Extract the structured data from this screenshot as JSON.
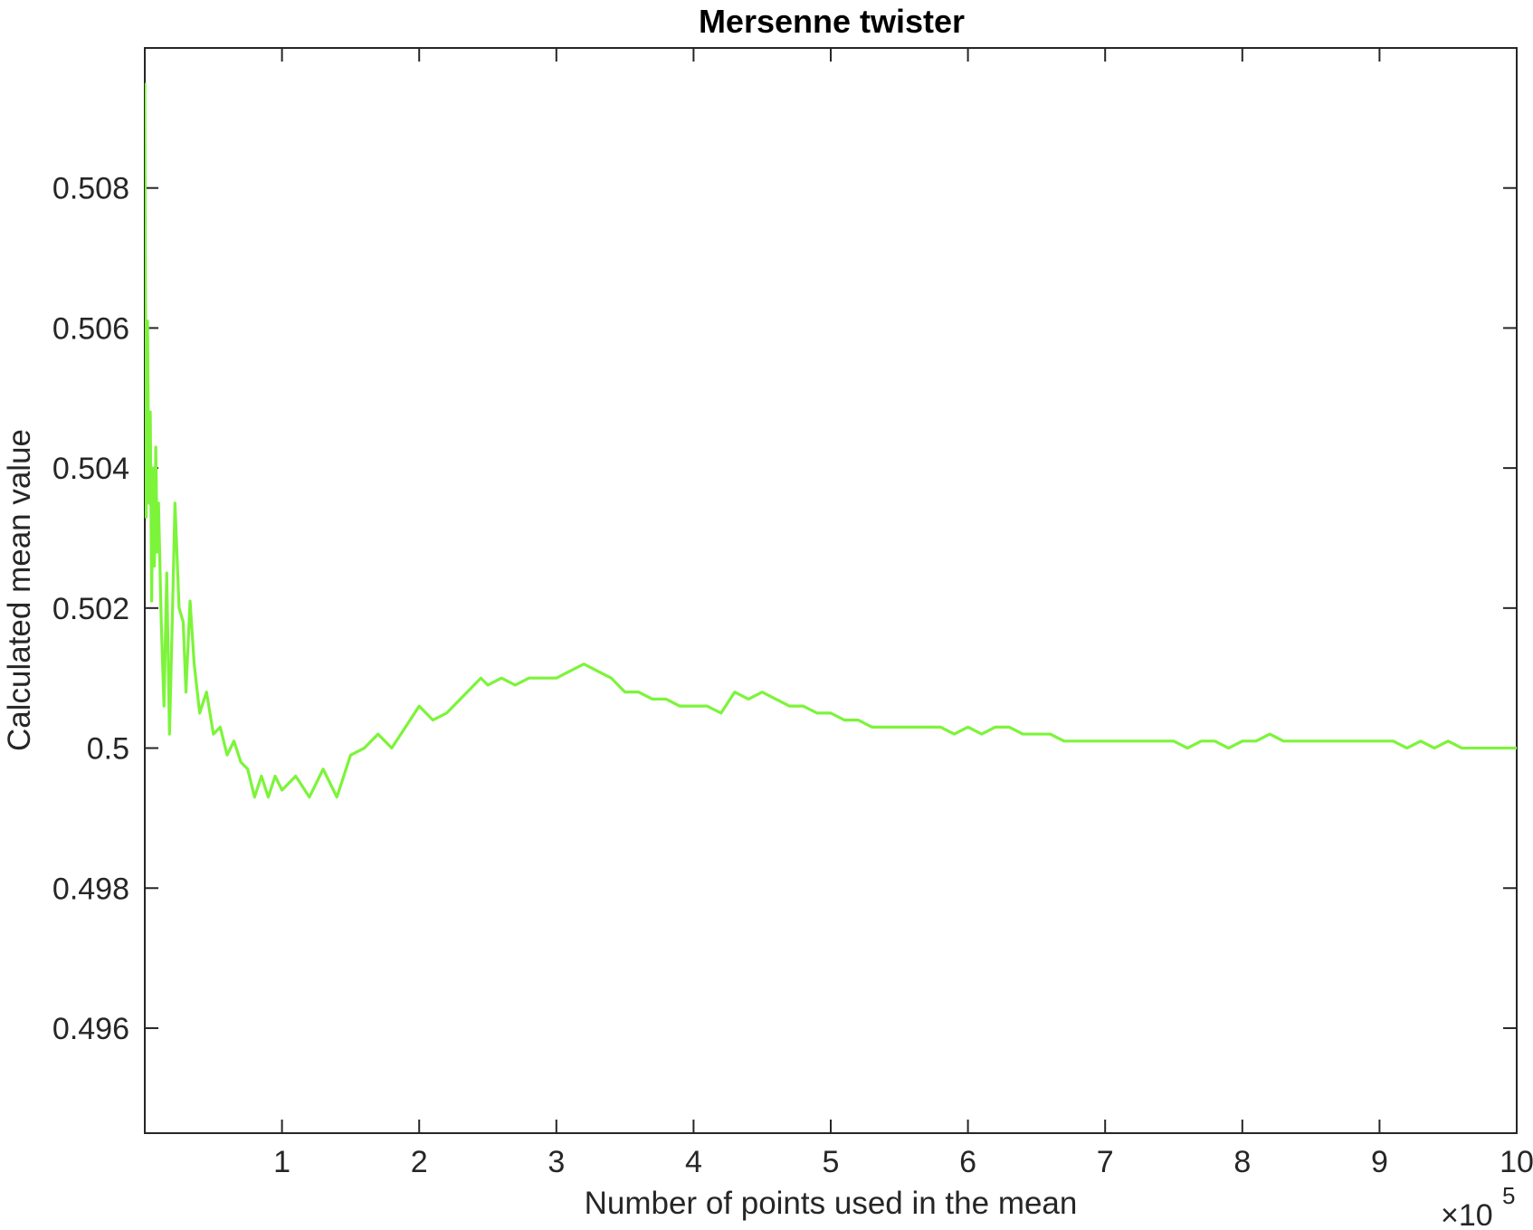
{
  "chart_data": {
    "type": "line",
    "title": "Mersenne twister",
    "xlabel": "Number of points used in the mean",
    "ylabel": "Calculated mean value",
    "x_exponent_label": "×10",
    "x_exponent": "5",
    "xlim": [
      0,
      10
    ],
    "ylim": [
      0.4945,
      0.51
    ],
    "x_ticks": [
      1,
      2,
      3,
      4,
      5,
      6,
      7,
      8,
      9,
      10
    ],
    "x_tick_labels": [
      "1",
      "2",
      "3",
      "4",
      "5",
      "6",
      "7",
      "8",
      "9",
      "10"
    ],
    "y_ticks": [
      0.496,
      0.498,
      0.5,
      0.502,
      0.504,
      0.506,
      0.508
    ],
    "y_tick_labels": [
      "0.496",
      "0.498",
      "0.5",
      "0.502",
      "0.504",
      "0.506",
      "0.508"
    ],
    "grid": false,
    "box": true,
    "series": [
      {
        "color": "#7cf43a",
        "x": [
          0.0,
          0.01,
          0.02,
          0.03,
          0.04,
          0.05,
          0.06,
          0.07,
          0.08,
          0.09,
          0.1,
          0.12,
          0.14,
          0.16,
          0.18,
          0.2,
          0.22,
          0.25,
          0.28,
          0.3,
          0.33,
          0.36,
          0.4,
          0.45,
          0.5,
          0.55,
          0.6,
          0.65,
          0.7,
          0.75,
          0.8,
          0.85,
          0.9,
          0.95,
          1.0,
          1.1,
          1.2,
          1.3,
          1.4,
          1.5,
          1.6,
          1.7,
          1.8,
          1.9,
          2.0,
          2.1,
          2.2,
          2.3,
          2.4,
          2.45,
          2.5,
          2.6,
          2.7,
          2.8,
          2.9,
          3.0,
          3.1,
          3.2,
          3.3,
          3.4,
          3.5,
          3.6,
          3.7,
          3.8,
          3.9,
          4.0,
          4.1,
          4.2,
          4.3,
          4.4,
          4.5,
          4.6,
          4.7,
          4.8,
          4.9,
          5.0,
          5.1,
          5.2,
          5.3,
          5.4,
          5.5,
          5.6,
          5.7,
          5.8,
          5.9,
          6.0,
          6.1,
          6.2,
          6.3,
          6.4,
          6.5,
          6.6,
          6.7,
          6.8,
          6.9,
          7.0,
          7.1,
          7.2,
          7.3,
          7.4,
          7.5,
          7.6,
          7.7,
          7.8,
          7.9,
          8.0,
          8.1,
          8.2,
          8.3,
          8.4,
          8.5,
          8.6,
          8.7,
          8.8,
          8.9,
          9.0,
          9.1,
          9.2,
          9.3,
          9.4,
          9.5,
          9.6,
          9.7,
          9.8,
          9.9,
          10.0
        ],
        "y": [
          0.5095,
          0.5033,
          0.5061,
          0.5035,
          0.5048,
          0.5021,
          0.504,
          0.5026,
          0.5043,
          0.5028,
          0.5035,
          0.5018,
          0.5006,
          0.5025,
          0.5002,
          0.5018,
          0.5035,
          0.502,
          0.5018,
          0.5008,
          0.5021,
          0.5012,
          0.5005,
          0.5008,
          0.5002,
          0.5003,
          0.4999,
          0.5001,
          0.4998,
          0.4997,
          0.4993,
          0.4996,
          0.4993,
          0.4996,
          0.4994,
          0.4996,
          0.4993,
          0.4997,
          0.4993,
          0.4999,
          0.5,
          0.5002,
          0.5,
          0.5003,
          0.5006,
          0.5004,
          0.5005,
          0.5007,
          0.5009,
          0.501,
          0.5009,
          0.501,
          0.5009,
          0.501,
          0.501,
          0.501,
          0.5011,
          0.5012,
          0.5011,
          0.501,
          0.5008,
          0.5008,
          0.5007,
          0.5007,
          0.5006,
          0.5006,
          0.5006,
          0.5005,
          0.5008,
          0.5007,
          0.5008,
          0.5007,
          0.5006,
          0.5006,
          0.5005,
          0.5005,
          0.5004,
          0.5004,
          0.5003,
          0.5003,
          0.5003,
          0.5003,
          0.5003,
          0.5003,
          0.5002,
          0.5003,
          0.5002,
          0.5003,
          0.5003,
          0.5002,
          0.5002,
          0.5002,
          0.5001,
          0.5001,
          0.5001,
          0.5001,
          0.5001,
          0.5001,
          0.5001,
          0.5001,
          0.5001,
          0.5,
          0.5001,
          0.5001,
          0.5,
          0.5001,
          0.5001,
          0.5002,
          0.5001,
          0.5001,
          0.5001,
          0.5001,
          0.5001,
          0.5001,
          0.5001,
          0.5001,
          0.5001,
          0.5,
          0.5001,
          0.5,
          0.5001,
          0.5,
          0.5,
          0.5,
          0.5,
          0.5
        ]
      }
    ]
  }
}
